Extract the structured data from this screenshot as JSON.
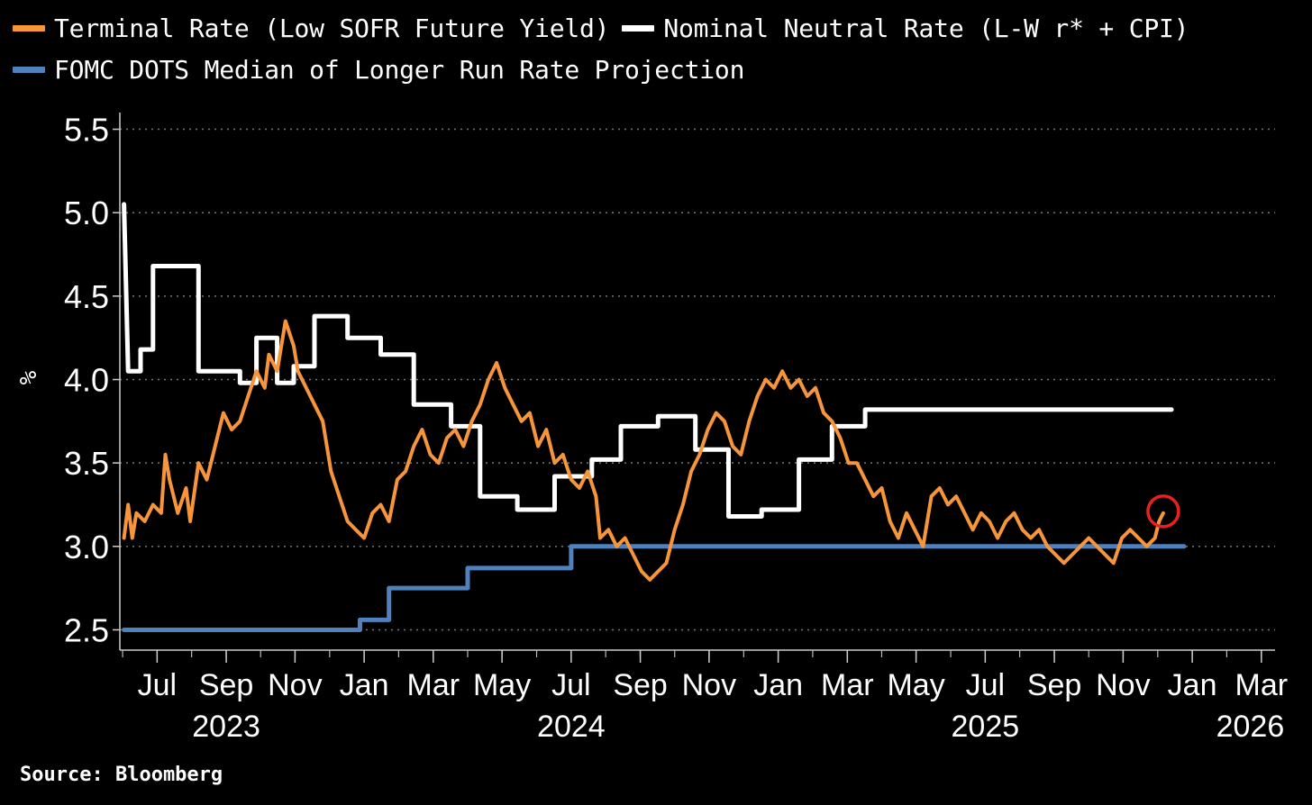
{
  "chart_data": {
    "type": "line",
    "title": "",
    "xlabel": "",
    "ylabel": "%",
    "ylim": [
      2.4,
      5.6
    ],
    "yticks": [
      2.5,
      3.0,
      3.5,
      4.0,
      4.5,
      5.0,
      5.5
    ],
    "ytick_labels": [
      "2.5",
      "3.0",
      "3.5",
      "4.0",
      "4.5",
      "5.0",
      "5.5"
    ],
    "xlim": [
      2023.41,
      2026.2
    ],
    "x_ticks": [
      {
        "x": 2023.5,
        "label": "Jul"
      },
      {
        "x": 2023.667,
        "label": "Sep"
      },
      {
        "x": 2023.833,
        "label": "Nov"
      },
      {
        "x": 2024.0,
        "label": "Jan"
      },
      {
        "x": 2024.167,
        "label": "Mar"
      },
      {
        "x": 2024.333,
        "label": "May"
      },
      {
        "x": 2024.5,
        "label": "Jul"
      },
      {
        "x": 2024.667,
        "label": "Sep"
      },
      {
        "x": 2024.833,
        "label": "Nov"
      },
      {
        "x": 2025.0,
        "label": "Jan"
      },
      {
        "x": 2025.167,
        "label": "Mar"
      },
      {
        "x": 2025.333,
        "label": "May"
      },
      {
        "x": 2025.5,
        "label": "Jul"
      },
      {
        "x": 2025.667,
        "label": "Sep"
      },
      {
        "x": 2025.833,
        "label": "Nov"
      },
      {
        "x": 2026.0,
        "label": "Jan"
      },
      {
        "x": 2026.167,
        "label": "Mar"
      }
    ],
    "year_labels": [
      {
        "x": 2023.667,
        "label": "2023"
      },
      {
        "x": 2024.5,
        "label": "2024"
      },
      {
        "x": 2025.5,
        "label": "2025"
      },
      {
        "x": 2026.14,
        "label": "2026"
      }
    ],
    "grid": true,
    "legend_position": "top-left",
    "series": [
      {
        "name": "Terminal Rate (Low SOFR Future Yield)",
        "color": "#f7953a",
        "style": "line",
        "points": [
          [
            2023.42,
            3.05
          ],
          [
            2023.43,
            3.25
          ],
          [
            2023.44,
            3.05
          ],
          [
            2023.45,
            3.2
          ],
          [
            2023.47,
            3.15
          ],
          [
            2023.49,
            3.25
          ],
          [
            2023.51,
            3.2
          ],
          [
            2023.52,
            3.55
          ],
          [
            2023.53,
            3.4
          ],
          [
            2023.55,
            3.2
          ],
          [
            2023.57,
            3.35
          ],
          [
            2023.58,
            3.15
          ],
          [
            2023.6,
            3.5
          ],
          [
            2023.62,
            3.4
          ],
          [
            2023.64,
            3.6
          ],
          [
            2023.66,
            3.8
          ],
          [
            2023.68,
            3.7
          ],
          [
            2023.7,
            3.75
          ],
          [
            2023.72,
            3.9
          ],
          [
            2023.74,
            4.05
          ],
          [
            2023.76,
            3.95
          ],
          [
            2023.77,
            4.15
          ],
          [
            2023.79,
            4.05
          ],
          [
            2023.81,
            4.35
          ],
          [
            2023.83,
            4.2
          ],
          [
            2023.84,
            4.05
          ],
          [
            2023.86,
            3.95
          ],
          [
            2023.88,
            3.85
          ],
          [
            2023.9,
            3.75
          ],
          [
            2023.92,
            3.45
          ],
          [
            2023.94,
            3.3
          ],
          [
            2023.96,
            3.15
          ],
          [
            2023.98,
            3.1
          ],
          [
            2024.0,
            3.05
          ],
          [
            2024.02,
            3.2
          ],
          [
            2024.04,
            3.25
          ],
          [
            2024.06,
            3.15
          ],
          [
            2024.08,
            3.4
          ],
          [
            2024.1,
            3.45
          ],
          [
            2024.12,
            3.6
          ],
          [
            2024.14,
            3.7
          ],
          [
            2024.16,
            3.55
          ],
          [
            2024.18,
            3.5
          ],
          [
            2024.2,
            3.65
          ],
          [
            2024.22,
            3.7
          ],
          [
            2024.24,
            3.6
          ],
          [
            2024.26,
            3.75
          ],
          [
            2024.28,
            3.85
          ],
          [
            2024.3,
            4.0
          ],
          [
            2024.32,
            4.1
          ],
          [
            2024.34,
            3.95
          ],
          [
            2024.36,
            3.85
          ],
          [
            2024.38,
            3.75
          ],
          [
            2024.4,
            3.8
          ],
          [
            2024.42,
            3.6
          ],
          [
            2024.44,
            3.7
          ],
          [
            2024.46,
            3.5
          ],
          [
            2024.48,
            3.55
          ],
          [
            2024.5,
            3.4
          ],
          [
            2024.52,
            3.35
          ],
          [
            2024.54,
            3.45
          ],
          [
            2024.56,
            3.3
          ],
          [
            2024.57,
            3.05
          ],
          [
            2024.59,
            3.1
          ],
          [
            2024.61,
            3.0
          ],
          [
            2024.63,
            3.05
          ],
          [
            2024.65,
            2.95
          ],
          [
            2024.67,
            2.85
          ],
          [
            2024.69,
            2.8
          ],
          [
            2024.71,
            2.85
          ],
          [
            2024.73,
            2.9
          ],
          [
            2024.75,
            3.1
          ],
          [
            2024.77,
            3.25
          ],
          [
            2024.79,
            3.45
          ],
          [
            2024.81,
            3.55
          ],
          [
            2024.83,
            3.7
          ],
          [
            2024.85,
            3.8
          ],
          [
            2024.87,
            3.75
          ],
          [
            2024.89,
            3.6
          ],
          [
            2024.91,
            3.55
          ],
          [
            2024.93,
            3.75
          ],
          [
            2024.95,
            3.9
          ],
          [
            2024.97,
            4.0
          ],
          [
            2024.99,
            3.95
          ],
          [
            2025.01,
            4.05
          ],
          [
            2025.03,
            3.95
          ],
          [
            2025.05,
            4.0
          ],
          [
            2025.07,
            3.9
          ],
          [
            2025.09,
            3.95
          ],
          [
            2025.11,
            3.8
          ],
          [
            2025.13,
            3.75
          ],
          [
            2025.15,
            3.65
          ],
          [
            2025.17,
            3.5
          ],
          [
            2025.19,
            3.5
          ],
          [
            2025.21,
            3.4
          ],
          [
            2025.23,
            3.3
          ],
          [
            2025.25,
            3.35
          ],
          [
            2025.27,
            3.15
          ],
          [
            2025.29,
            3.05
          ],
          [
            2025.31,
            3.2
          ],
          [
            2025.33,
            3.1
          ],
          [
            2025.35,
            3.0
          ],
          [
            2025.37,
            3.3
          ],
          [
            2025.39,
            3.35
          ],
          [
            2025.41,
            3.25
          ],
          [
            2025.43,
            3.3
          ],
          [
            2025.45,
            3.2
          ],
          [
            2025.47,
            3.1
          ],
          [
            2025.49,
            3.2
          ],
          [
            2025.51,
            3.15
          ],
          [
            2025.53,
            3.05
          ],
          [
            2025.55,
            3.15
          ],
          [
            2025.57,
            3.2
          ],
          [
            2025.59,
            3.1
          ],
          [
            2025.61,
            3.05
          ],
          [
            2025.63,
            3.1
          ],
          [
            2025.65,
            3.0
          ],
          [
            2025.67,
            2.95
          ],
          [
            2025.69,
            2.9
          ],
          [
            2025.71,
            2.95
          ],
          [
            2025.73,
            3.0
          ],
          [
            2025.75,
            3.05
          ],
          [
            2025.77,
            3.0
          ],
          [
            2025.79,
            2.95
          ],
          [
            2025.81,
            2.9
          ],
          [
            2025.83,
            3.05
          ],
          [
            2025.85,
            3.1
          ],
          [
            2025.87,
            3.05
          ],
          [
            2025.89,
            3.0
          ],
          [
            2025.91,
            3.05
          ],
          [
            2025.92,
            3.15
          ],
          [
            2025.93,
            3.2
          ]
        ]
      },
      {
        "name": "Nominal Neutral Rate (L-W r* + CPI)",
        "color": "#ffffff",
        "style": "step",
        "points": [
          [
            2023.42,
            5.05
          ],
          [
            2023.43,
            4.05
          ],
          [
            2023.46,
            4.05
          ],
          [
            2023.46,
            4.18
          ],
          [
            2023.49,
            4.18
          ],
          [
            2023.49,
            4.68
          ],
          [
            2023.6,
            4.68
          ],
          [
            2023.6,
            4.05
          ],
          [
            2023.7,
            4.05
          ],
          [
            2023.7,
            3.98
          ],
          [
            2023.74,
            3.98
          ],
          [
            2023.74,
            4.25
          ],
          [
            2023.79,
            4.25
          ],
          [
            2023.79,
            3.98
          ],
          [
            2023.83,
            3.98
          ],
          [
            2023.83,
            4.08
          ],
          [
            2023.88,
            4.08
          ],
          [
            2023.88,
            4.38
          ],
          [
            2023.96,
            4.38
          ],
          [
            2023.96,
            4.25
          ],
          [
            2024.04,
            4.25
          ],
          [
            2024.04,
            4.15
          ],
          [
            2024.12,
            4.15
          ],
          [
            2024.12,
            3.85
          ],
          [
            2024.21,
            3.85
          ],
          [
            2024.21,
            3.72
          ],
          [
            2024.28,
            3.72
          ],
          [
            2024.28,
            3.3
          ],
          [
            2024.37,
            3.3
          ],
          [
            2024.37,
            3.22
          ],
          [
            2024.46,
            3.22
          ],
          [
            2024.46,
            3.42
          ],
          [
            2024.55,
            3.42
          ],
          [
            2024.55,
            3.52
          ],
          [
            2024.62,
            3.52
          ],
          [
            2024.62,
            3.72
          ],
          [
            2024.71,
            3.72
          ],
          [
            2024.71,
            3.78
          ],
          [
            2024.8,
            3.78
          ],
          [
            2024.8,
            3.58
          ],
          [
            2024.88,
            3.58
          ],
          [
            2024.88,
            3.18
          ],
          [
            2024.96,
            3.18
          ],
          [
            2024.96,
            3.22
          ],
          [
            2025.05,
            3.22
          ],
          [
            2025.05,
            3.52
          ],
          [
            2025.13,
            3.52
          ],
          [
            2025.13,
            3.72
          ],
          [
            2025.21,
            3.72
          ],
          [
            2025.21,
            3.82
          ],
          [
            2025.3,
            3.82
          ],
          [
            2025.95,
            3.82
          ]
        ]
      },
      {
        "name": "FOMC DOTS Median of Longer Run Rate Projection",
        "color": "#4f81bd",
        "style": "step",
        "points": [
          [
            2023.42,
            2.5
          ],
          [
            2023.99,
            2.5
          ],
          [
            2023.99,
            2.56
          ],
          [
            2024.06,
            2.56
          ],
          [
            2024.06,
            2.75
          ],
          [
            2024.25,
            2.75
          ],
          [
            2024.25,
            2.87
          ],
          [
            2024.5,
            2.87
          ],
          [
            2024.5,
            3.0
          ],
          [
            2025.98,
            3.0
          ]
        ]
      }
    ],
    "annotations": [
      {
        "type": "circle",
        "x": 2025.93,
        "y": 3.21,
        "color": "#e8201f"
      }
    ]
  },
  "source": "Source: Bloomberg"
}
